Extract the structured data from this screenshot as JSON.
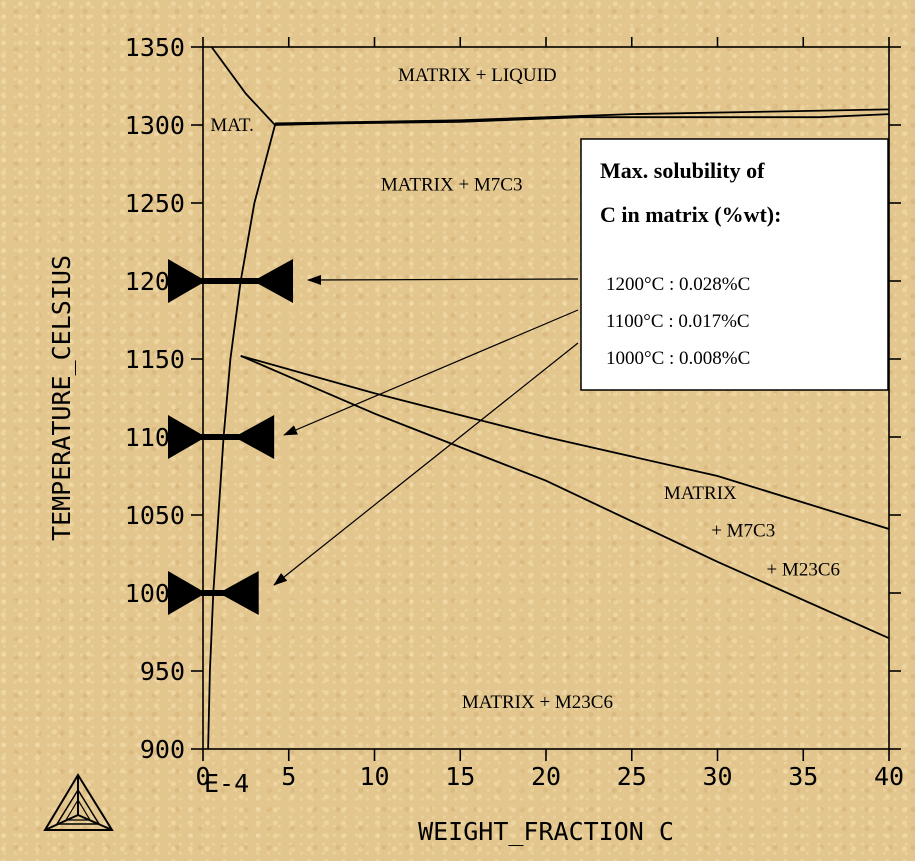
{
  "chart_data": {
    "type": "line",
    "xlabel": "WEIGHT_FRACTION C",
    "ylabel": "TEMPERATURE_CELSIUS",
    "x_exponent_label": "E-4",
    "xlim": [
      0,
      40
    ],
    "ylim": [
      900,
      1350
    ],
    "x_ticks": [
      0,
      5,
      10,
      15,
      20,
      25,
      30,
      35,
      40
    ],
    "y_ticks": [
      900,
      950,
      1000,
      1050,
      1100,
      1150,
      1200,
      1250,
      1300,
      1350
    ],
    "grid": false,
    "series": [
      {
        "x": [
          0.5,
          2.5,
          4.2
        ],
        "y": [
          1350,
          1320,
          1300
        ]
      },
      {
        "x": [
          4.2,
          8,
          15,
          22,
          30,
          36,
          40
        ],
        "y": [
          1300,
          1301,
          1302,
          1305,
          1305,
          1305,
          1307
        ]
      },
      {
        "x": [
          4.2,
          15,
          25,
          35,
          40
        ],
        "y": [
          1301,
          1303,
          1307,
          1309,
          1310
        ]
      },
      {
        "x": [
          0.3,
          0.4,
          0.6,
          0.9,
          1.2,
          1.6,
          2.2,
          3.0,
          4.2
        ],
        "y": [
          900,
          950,
          1000,
          1050,
          1100,
          1150,
          1200,
          1250,
          1300
        ]
      },
      {
        "x": [
          2.2,
          10,
          20,
          30,
          40
        ],
        "y": [
          1152,
          1115,
          1072,
          1020,
          971
        ]
      },
      {
        "x": [
          2.2,
          10,
          20,
          30,
          40
        ],
        "y": [
          1152,
          1128,
          1100,
          1075,
          1041
        ]
      }
    ],
    "region_labels": [
      {
        "text": "MATRIX + LIQUID",
        "x": 16,
        "y": 1332
      },
      {
        "text": "MAT.",
        "x": 1.7,
        "y": 1300
      },
      {
        "text": "MATRIX + M7C3",
        "x": 14.5,
        "y": 1262
      },
      {
        "text": "MATRIX",
        "x": 29,
        "y": 1064
      },
      {
        "text": "+ M7C3",
        "x": 31.5,
        "y": 1040
      },
      {
        "text": "+ M23C6",
        "x": 35,
        "y": 1015
      },
      {
        "text": "MATRIX + M23C6",
        "x": 19.5,
        "y": 930
      }
    ],
    "annotation": {
      "heading_lines": [
        "Max. solubility of",
        "C in matrix (%wt):"
      ],
      "lines": [
        "1200°C : 0.028%C",
        "1100°C : 0.017%C",
        "1000°C : 0.008%C"
      ]
    },
    "solubility_markers": [
      {
        "temperature": 1200,
        "x": 2.8
      },
      {
        "temperature": 1100,
        "x": 1.7
      },
      {
        "temperature": 1000,
        "x": 0.8
      }
    ]
  },
  "logo": {
    "icon": "thermo-calc-triangle-logo"
  }
}
